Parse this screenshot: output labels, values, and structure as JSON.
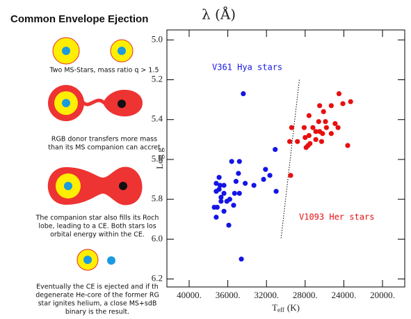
{
  "diagram": {
    "title": "Common Envelope Ejection",
    "captions": [
      [
        "Two MS-Stars, mass ratio q > 1.5"
      ],
      [
        "RGB donor transfers more mass",
        "than its MS companion can accret"
      ],
      [
        "The companion star also fills its Roch",
        "lobe, leading to a CE. Both stars los",
        "orbital energy within the CE."
      ],
      [
        "Eventually the CE is ejected and if th",
        "degenerate He-core of the former RG",
        "star ignites helium, a close MS+sdB",
        "binary is the result."
      ]
    ]
  },
  "chart_data": {
    "type": "scatter",
    "title": "λ (Å)",
    "ylabel": "Log g",
    "xlabel_parts": [
      "T",
      "eff",
      "(K)"
    ],
    "annotations": [
      {
        "text": "V361 Hya stars",
        "color": "#1515e6"
      },
      {
        "text": "V1093 Her stars",
        "color": "#e61010"
      }
    ],
    "xlim": [
      42300,
      17700
    ],
    "ylim": [
      6.24,
      4.95
    ],
    "xticks": [
      {
        "value": 40000,
        "label": "40000."
      },
      {
        "value": 36000,
        "label": "36000."
      },
      {
        "value": 32000,
        "label": "32000."
      },
      {
        "value": 28000,
        "label": "28000."
      },
      {
        "value": 24000,
        "label": "24000."
      },
      {
        "value": 20000,
        "label": "20000."
      }
    ],
    "yticks": [
      {
        "value": 5,
        "label": "5.0"
      },
      5.2,
      5.4,
      5.6,
      5.8,
      {
        "value": 6,
        "label": "6.0"
      },
      6.2
    ],
    "divider": {
      "x": [
        28600,
        30500
      ],
      "y": [
        5.2,
        6.0
      ]
    },
    "series": [
      {
        "color": "#1515e6",
        "x": [
          34400,
          35600,
          34800,
          31100,
          32100,
          31650,
          32300,
          31000,
          34900,
          35150,
          34200,
          36900,
          37200,
          36800,
          36400,
          36900,
          37200,
          36400,
          36700,
          36100,
          36700,
          37100,
          37400,
          37200,
          36400,
          35900,
          34800,
          35300,
          34600,
          33300,
          35400,
          35800
        ],
        "values": [
          5.27,
          5.61,
          5.61,
          5.55,
          5.65,
          5.68,
          5.7,
          5.76,
          5.67,
          5.71,
          5.72,
          5.69,
          5.72,
          5.73,
          5.73,
          5.75,
          5.76,
          5.77,
          5.79,
          5.81,
          5.81,
          5.84,
          5.84,
          5.89,
          5.86,
          5.93,
          5.77,
          5.77,
          6.1,
          5.73,
          5.83,
          5.8
        ]
      },
      {
        "color": "#e61010",
        "x": [
          26500,
          26100,
          25300,
          24500,
          24100,
          23300,
          27600,
          26600,
          25900,
          27200,
          25800,
          24900,
          24600,
          26900,
          26500,
          26200,
          25300,
          28000,
          28800,
          27700,
          27900,
          26900,
          26300,
          23600,
          29500,
          28100,
          27600,
          29400,
          29600,
          27500
        ],
        "values": [
          5.33,
          5.36,
          5.33,
          5.27,
          5.32,
          5.31,
          5.38,
          5.41,
          5.41,
          5.44,
          5.44,
          5.42,
          5.44,
          5.46,
          5.46,
          5.47,
          5.47,
          5.49,
          5.51,
          5.53,
          5.54,
          5.5,
          5.51,
          5.53,
          5.68,
          5.44,
          5.48,
          5.44,
          5.51,
          5.52
        ]
      }
    ]
  }
}
